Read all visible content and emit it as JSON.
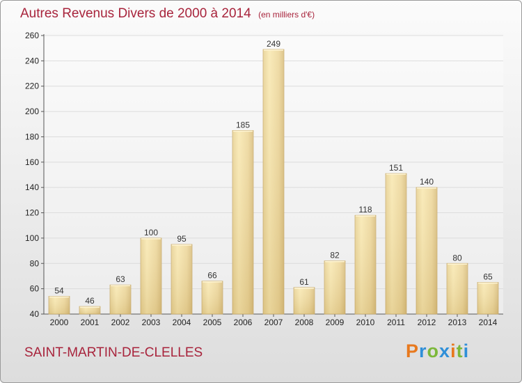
{
  "header": {
    "title": "Autres Revenus Divers de 2000 à 2014",
    "unit": "(en milliers d'€)"
  },
  "footer": {
    "town": "SAINT-MARTIN-DE-CLELLES",
    "brand": "Proxiti",
    "brand_colors": [
      "#e8791e",
      "#2f8fd8",
      "#7cb83a",
      "#2f8fd8",
      "#e8791e",
      "#7cb83a",
      "#2f8fd8"
    ]
  },
  "colors": {
    "title": "#a8243c",
    "bar_light": "#f7e2a6",
    "bar_dark": "#d9be7e",
    "grid": "#dcdcdc"
  },
  "chart_data": {
    "type": "bar",
    "title": "Autres Revenus Divers de 2000 à 2014",
    "categories": [
      "2000",
      "2001",
      "2002",
      "2003",
      "2004",
      "2005",
      "2006",
      "2007",
      "2008",
      "2009",
      "2010",
      "2011",
      "2012",
      "2013",
      "2014"
    ],
    "values": [
      54,
      46,
      63,
      100,
      95,
      66,
      185,
      249,
      61,
      82,
      118,
      151,
      140,
      80,
      65
    ],
    "ylim": [
      40,
      260
    ],
    "yticks": [
      40,
      60,
      80,
      100,
      120,
      140,
      160,
      180,
      200,
      220,
      240,
      260
    ],
    "grid": true,
    "xlabel": "",
    "ylabel": ""
  }
}
